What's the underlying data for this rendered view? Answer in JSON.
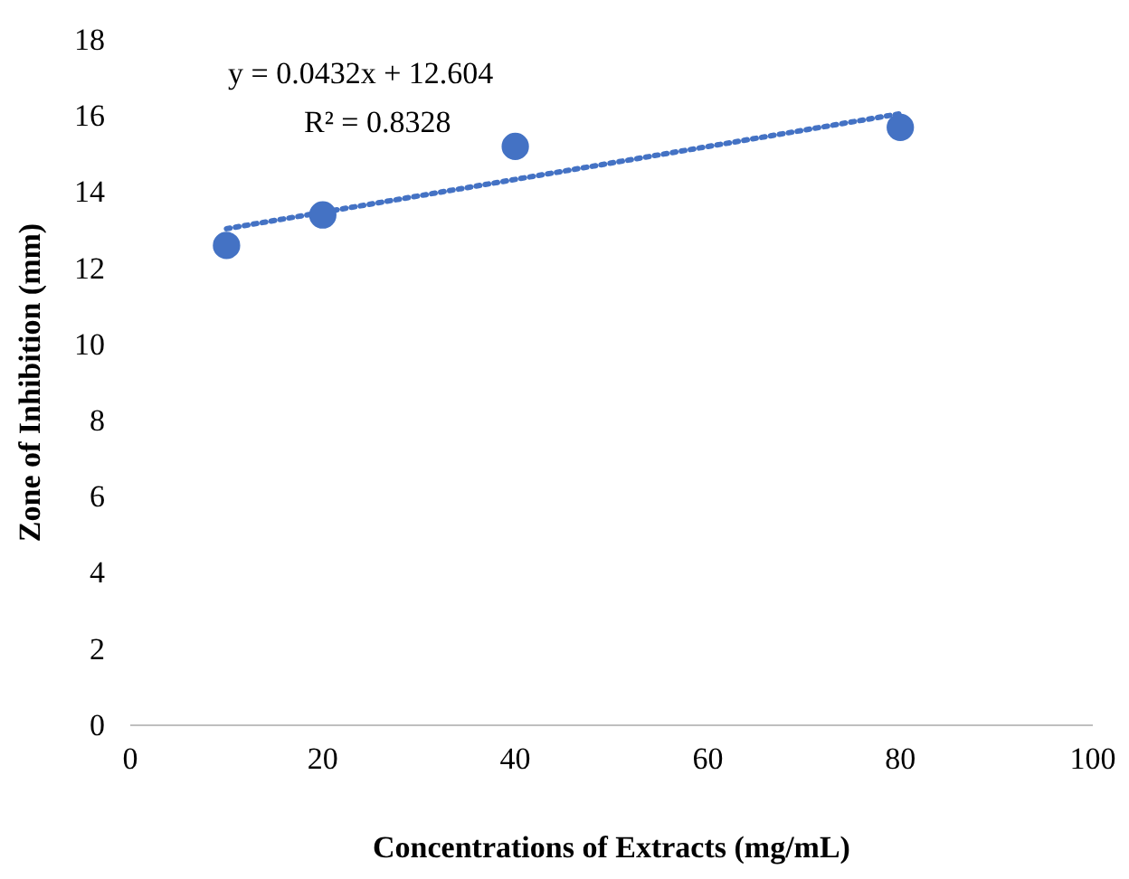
{
  "chart_data": {
    "type": "scatter",
    "xlabel": "Concentrations of Extracts (mg/mL)",
    "ylabel": "Zone of Inhibition (mm)",
    "xlim": [
      0,
      100
    ],
    "xticks": [
      0,
      20,
      40,
      60,
      80,
      100
    ],
    "ylim": [
      0,
      18
    ],
    "yticks": [
      0,
      2,
      4,
      6,
      8,
      10,
      12,
      14,
      16,
      18
    ],
    "grid": false,
    "series": [
      {
        "color": "#4472c4",
        "x": [
          10,
          20,
          40,
          80
        ],
        "values": [
          12.6,
          13.4,
          15.2,
          15.7
        ],
        "marker": "circle"
      },
      {
        "type": "line",
        "color": "#4472c4",
        "x": [
          10,
          80
        ],
        "values": [
          13.04,
          16.06
        ],
        "line_style": "dotted"
      }
    ],
    "annotations": [
      "y = 0.0432x + 12.604",
      "R² = 0.8328"
    ]
  }
}
